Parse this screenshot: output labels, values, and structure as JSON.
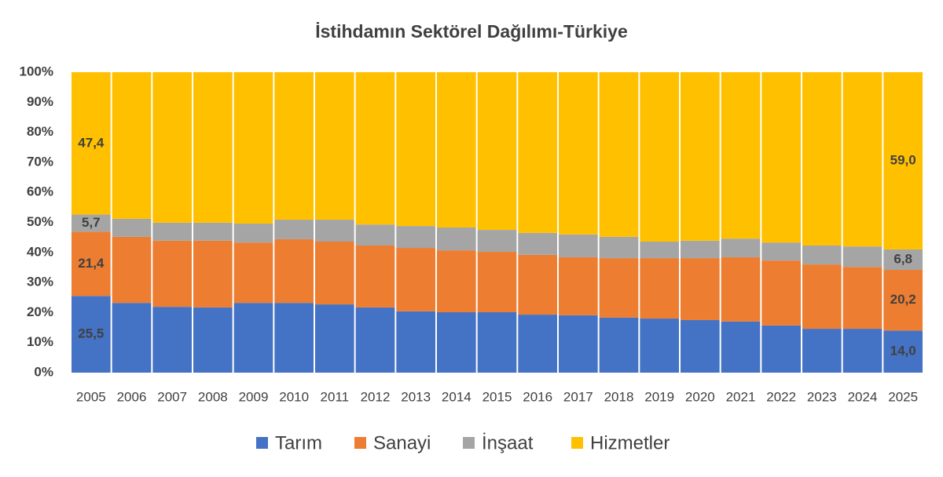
{
  "chart_data": {
    "type": "stacked_bar_100",
    "title": "İstihdamın Sektörel Dağılımı-Türkiye",
    "categories": [
      "2005",
      "2006",
      "2007",
      "2008",
      "2009",
      "2010",
      "2011",
      "2012",
      "2013",
      "2014",
      "2015",
      "2016",
      "2017",
      "2018",
      "2019",
      "2020",
      "2021",
      "2022",
      "2023",
      "2024",
      "2025"
    ],
    "series": [
      {
        "name": "Tarım",
        "color": "#4472c4",
        "values": [
          25.5,
          23.2,
          21.9,
          21.7,
          23.2,
          23.2,
          22.7,
          21.7,
          20.4,
          20.1,
          20.1,
          19.3,
          19.1,
          18.3,
          18.0,
          17.5,
          17.0,
          15.7,
          14.6,
          14.6,
          14.0
        ],
        "value_labels": [
          "25,5",
          null,
          null,
          null,
          null,
          null,
          null,
          null,
          null,
          null,
          null,
          null,
          null,
          null,
          null,
          null,
          null,
          null,
          null,
          null,
          "14,0"
        ]
      },
      {
        "name": "Sanayi",
        "color": "#ed7d31",
        "values": [
          21.4,
          22.0,
          22.0,
          22.2,
          20.1,
          21.2,
          20.9,
          20.6,
          21.1,
          20.6,
          20.1,
          19.9,
          19.3,
          19.8,
          20.1,
          20.6,
          21.4,
          21.6,
          21.4,
          20.6,
          20.2
        ],
        "value_labels": [
          "21,4",
          null,
          null,
          null,
          null,
          null,
          null,
          null,
          null,
          null,
          null,
          null,
          null,
          null,
          null,
          null,
          null,
          null,
          null,
          null,
          "20,2"
        ]
      },
      {
        "name": "İnşaat",
        "color": "#a5a5a5",
        "values": [
          5.7,
          6.0,
          6.0,
          6.0,
          6.3,
          6.5,
          7.3,
          7.0,
          7.3,
          7.6,
          7.3,
          7.3,
          7.6,
          7.1,
          5.5,
          5.8,
          6.2,
          6.0,
          6.3,
          6.8,
          6.8
        ],
        "value_labels": [
          "5,7",
          null,
          null,
          null,
          null,
          null,
          null,
          null,
          null,
          null,
          null,
          null,
          null,
          null,
          null,
          null,
          null,
          null,
          null,
          null,
          "6,8"
        ]
      },
      {
        "name": "Hizmetler",
        "color": "#ffc000",
        "values": [
          47.4,
          48.8,
          50.1,
          50.1,
          50.4,
          49.1,
          49.1,
          50.7,
          51.2,
          51.7,
          52.5,
          53.5,
          54.0,
          54.8,
          56.4,
          56.1,
          55.4,
          56.7,
          57.7,
          58.0,
          59.0
        ],
        "value_labels": [
          "47,4",
          null,
          null,
          null,
          null,
          null,
          null,
          null,
          null,
          null,
          null,
          null,
          null,
          null,
          null,
          null,
          null,
          null,
          null,
          null,
          "59,0"
        ]
      }
    ],
    "ylim": [
      0,
      100
    ],
    "yticks": [
      {
        "value": 0,
        "label": "0%"
      },
      {
        "value": 10,
        "label": "10%"
      },
      {
        "value": 20,
        "label": "20%"
      },
      {
        "value": 30,
        "label": "30%"
      },
      {
        "value": 40,
        "label": "40%"
      },
      {
        "value": 50,
        "label": "50%"
      },
      {
        "value": 60,
        "label": "60%"
      },
      {
        "value": 70,
        "label": "70%"
      },
      {
        "value": 80,
        "label": "80%"
      },
      {
        "value": 90,
        "label": "90%"
      },
      {
        "value": 100,
        "label": "100%"
      }
    ],
    "legend": "bottom"
  }
}
